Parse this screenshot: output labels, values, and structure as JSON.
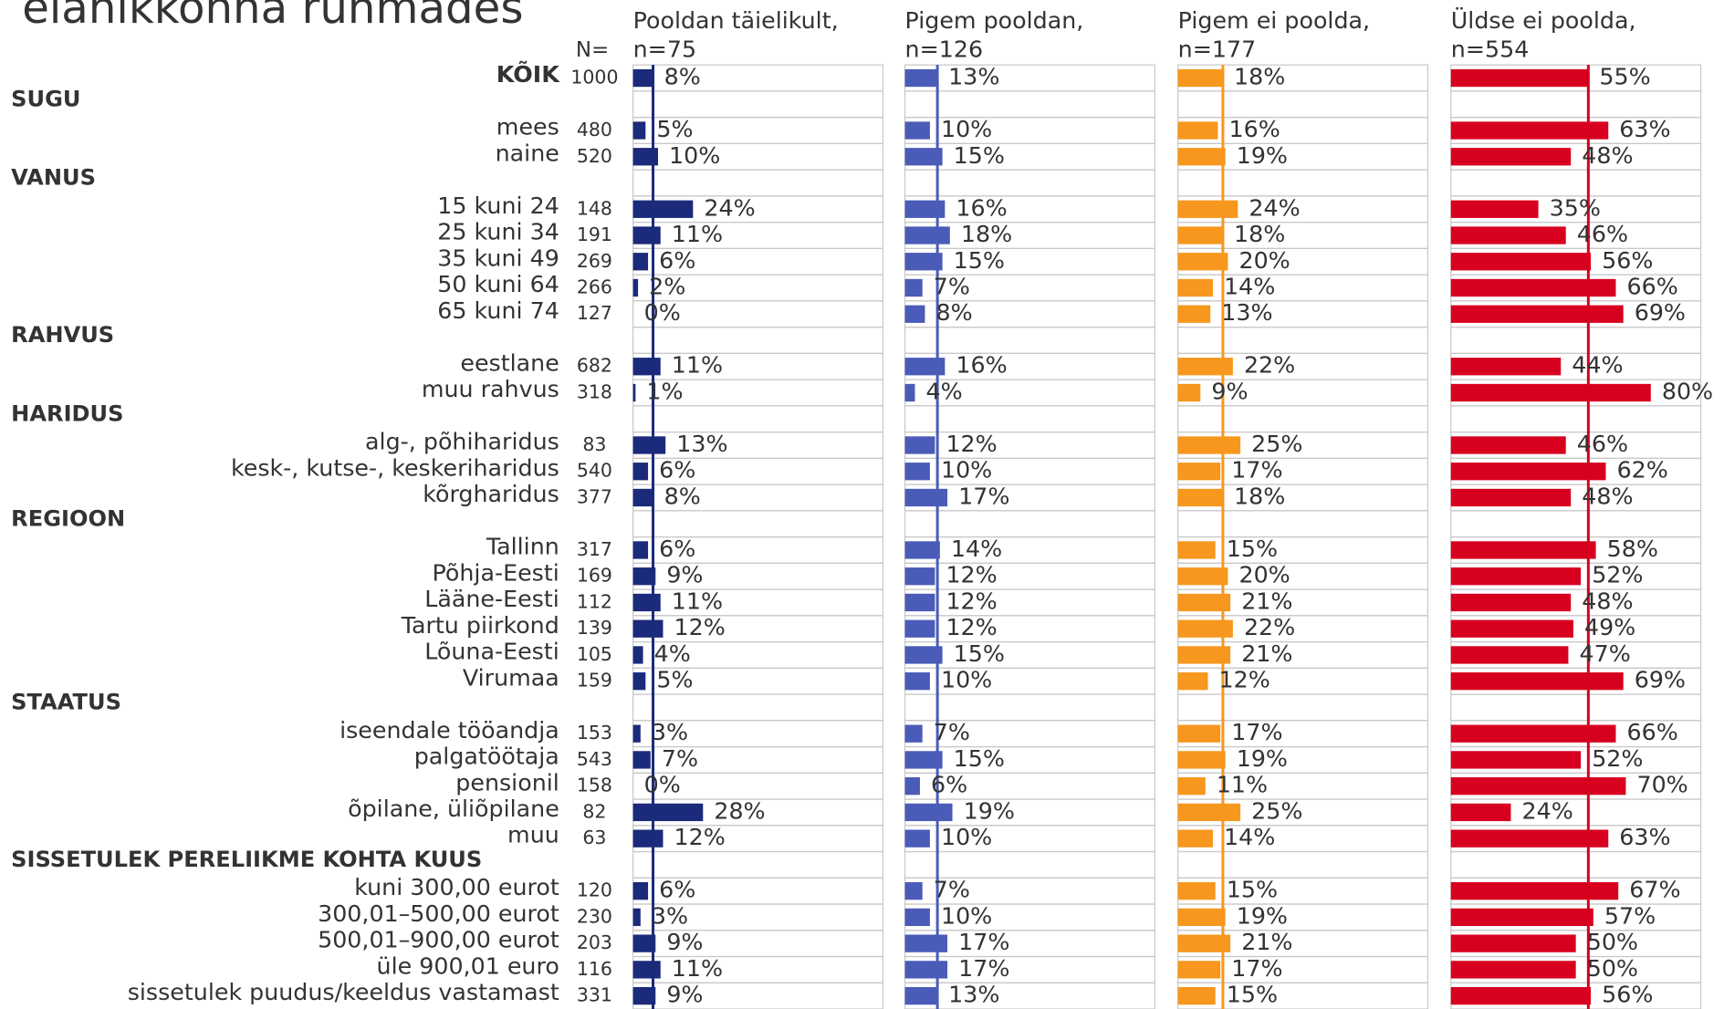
{
  "chart_data": {
    "type": "bar",
    "title": "elanikkonna rühmades",
    "n_label": "N=",
    "xlim": [
      0,
      100
    ],
    "categories": [
      "KÕIK",
      "SUGU",
      "mees",
      "naine",
      "VANUS",
      "15 kuni 24",
      "25 kuni 34",
      "35 kuni 49",
      "50 kuni 64",
      "65 kuni 74",
      "RAHVUS",
      "eestlane",
      "muu rahvus",
      "HARIDUS",
      "alg-, põhiharidus",
      "kesk-, kutse-, keskeriharidus",
      "kõrgharidus",
      "REGIOON",
      "Tallinn",
      "Põhja-Eesti",
      "Lääne-Eesti",
      "Tartu piirkond",
      "Lõuna-Eesti",
      "Virumaa",
      "STAATUS",
      "iseendale tööandja",
      "palgatöötaja",
      "pensionil",
      "õpilane, üliõpilane",
      "muu",
      "SISSETULEK PERELIIKME KOHTA KUUS",
      "kuni 300,00 eurot",
      "300,01–500,00 eurot",
      "500,01–900,00 eurot",
      "üle 900,01 euro",
      "sissetulek puudus/keeldus vastamast"
    ],
    "n": [
      1000,
      null,
      480,
      520,
      null,
      148,
      191,
      269,
      266,
      127,
      null,
      682,
      318,
      null,
      83,
      540,
      377,
      null,
      317,
      169,
      112,
      139,
      105,
      159,
      null,
      153,
      543,
      158,
      82,
      63,
      null,
      120,
      230,
      203,
      116,
      331
    ],
    "series": [
      {
        "name": "Pooldan täielikult,",
        "subtitle": "n=75",
        "color": "#1b2a7a",
        "values": [
          8,
          null,
          5,
          10,
          null,
          24,
          11,
          6,
          2,
          0,
          null,
          11,
          1,
          null,
          13,
          6,
          8,
          null,
          6,
          9,
          11,
          12,
          4,
          5,
          null,
          3,
          7,
          0,
          28,
          12,
          null,
          6,
          3,
          9,
          11,
          9
        ],
        "value_labels": [
          "8%",
          null,
          "5%",
          "10%",
          null,
          "24%",
          "11%",
          "6%",
          "2%",
          "0%",
          null,
          "11%",
          "1%",
          null,
          "13%",
          "6%",
          "8%",
          null,
          "6%",
          "9%",
          "11%",
          "12%",
          "4%",
          "5%",
          null,
          "3%",
          "7%",
          "0%",
          "28%",
          "12%",
          null,
          "6%",
          "3%",
          "9%",
          "11%",
          "9%"
        ]
      },
      {
        "name": "Pigem pooldan,",
        "subtitle": "n=126",
        "color": "#4a5cb8",
        "values": [
          13,
          null,
          10,
          15,
          null,
          16,
          18,
          15,
          7,
          8,
          null,
          16,
          4,
          null,
          12,
          10,
          17,
          null,
          14,
          12,
          12,
          12,
          15,
          10,
          null,
          7,
          15,
          6,
          19,
          10,
          null,
          7,
          10,
          17,
          17,
          13
        ],
        "value_labels": [
          "13%",
          null,
          "10%",
          "15%",
          null,
          "16%",
          "18%",
          "15%",
          "7%",
          "8%",
          null,
          "16%",
          "4%",
          null,
          "12%",
          "10%",
          "17%",
          null,
          "14%",
          "12%",
          "12%",
          "12%",
          "15%",
          "10%",
          null,
          "7%",
          "15%",
          "6%",
          "19%",
          "10%",
          null,
          "7%",
          "10%",
          "17%",
          "17%",
          "13%"
        ]
      },
      {
        "name": "Pigem ei poolda,",
        "subtitle": "n=177",
        "color": "#f7971e",
        "values": [
          18,
          null,
          16,
          19,
          null,
          24,
          18,
          20,
          14,
          13,
          null,
          22,
          9,
          null,
          25,
          17,
          18,
          null,
          15,
          20,
          21,
          22,
          21,
          12,
          null,
          17,
          19,
          11,
          25,
          14,
          null,
          15,
          19,
          21,
          17,
          15
        ],
        "value_labels": [
          "18%",
          null,
          "16%",
          "19%",
          null,
          "24%",
          "18%",
          "20%",
          "14%",
          "13%",
          null,
          "22%",
          "9%",
          null,
          "25%",
          "17%",
          "18%",
          null,
          "15%",
          "20%",
          "21%",
          "22%",
          "21%",
          "12%",
          null,
          "17%",
          "19%",
          "11%",
          "25%",
          "14%",
          null,
          "15%",
          "19%",
          "21%",
          "17%",
          "15%"
        ]
      },
      {
        "name": "Üldse ei poolda,",
        "subtitle": "n=554",
        "color": "#d7001f",
        "values": [
          55,
          null,
          63,
          48,
          null,
          35,
          46,
          56,
          66,
          69,
          null,
          44,
          80,
          null,
          46,
          62,
          48,
          null,
          58,
          52,
          48,
          49,
          47,
          69,
          null,
          66,
          52,
          70,
          24,
          63,
          null,
          67,
          57,
          50,
          50,
          56
        ],
        "value_labels": [
          "55%",
          null,
          "63%",
          "48%",
          null,
          "35%",
          "46%",
          "56%",
          "66%",
          "69%",
          null,
          "44%",
          "80%",
          null,
          "46%",
          "62%",
          "48%",
          null,
          "58%",
          "52%",
          "48%",
          "49%",
          "47%",
          "69%",
          null,
          "66%",
          "52%",
          "70%",
          "24%",
          "63%",
          null,
          "67%",
          "57%",
          "50%",
          "50%",
          "56%"
        ]
      }
    ]
  }
}
